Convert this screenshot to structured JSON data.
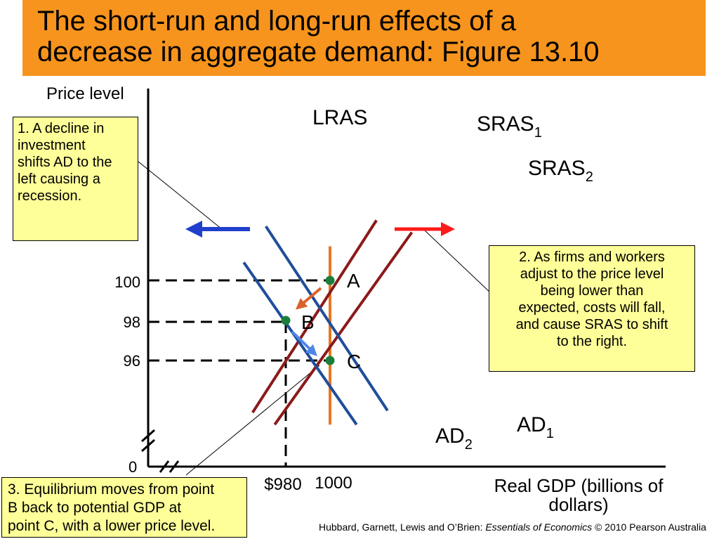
{
  "title": {
    "line1": "The short-run and long-run effects of a",
    "line2": "decrease in aggregate demand: Figure 13.10"
  },
  "colors": {
    "title_bg": "#F7941D",
    "lras": "#E87722",
    "sras": "#8B1A1A",
    "ad": "#1F4E9A",
    "points": "#1B7F3B",
    "note_bg": "#FFFF99",
    "arrow_left": "#1F3FCC",
    "arrow_right": "#FF1A1A",
    "arrow_a_to_b": "#D9622B",
    "arrow_b_to_c": "#4F86E8"
  },
  "chart_data": {
    "type": "line",
    "xlabel_line1": "Real GDP (billions of",
    "xlabel_line2": "dollars)",
    "ylabel": "Price level",
    "x_ticks": [
      "$980",
      "1000"
    ],
    "y_ticks": [
      "100",
      "98",
      "96"
    ],
    "origin_label": "0",
    "series": [
      {
        "name": "LRAS",
        "x": [
          1000,
          1000
        ],
        "y": [
          101.7,
          92.8
        ]
      },
      {
        "name": "SRAS",
        "subscript": "1",
        "x": [
          965,
          1021
        ],
        "y": [
          93.4,
          103
        ]
      },
      {
        "name": "SRAS",
        "subscript": "2",
        "x": [
          975,
          1037
        ],
        "y": [
          92.8,
          102.4
        ]
      },
      {
        "name": "AD",
        "subscript": "1",
        "x": [
          971,
          1026
        ],
        "y": [
          102.7,
          93.5
        ]
      },
      {
        "name": "AD",
        "subscript": "2",
        "x": [
          961,
          1012
        ],
        "y": [
          100.9,
          92.8
        ]
      }
    ],
    "points": [
      {
        "label": "A",
        "x": 1000,
        "y": 100
      },
      {
        "label": "B",
        "x": 980,
        "y": 98
      },
      {
        "label": "C",
        "x": 1000,
        "y": 96
      }
    ]
  },
  "notes": {
    "note1": [
      "1. A decline in",
      "investment",
      "shifts AD to the",
      "left causing a",
      "recession."
    ],
    "note2": [
      "2. As firms and workers",
      "adjust to the price level",
      "being lower than",
      "expected, costs will fall,",
      "and cause SRAS to shift",
      "to the right."
    ],
    "note3": [
      "3. Equilibrium moves from point",
      "B back to potential GDP at",
      "point C, with a lower price level."
    ]
  },
  "source": {
    "authors": "Hubbard, Garnett, Lewis and O’Brien: ",
    "book": "Essentials of Economics",
    "rest": " © 2010 Pearson Australia"
  }
}
